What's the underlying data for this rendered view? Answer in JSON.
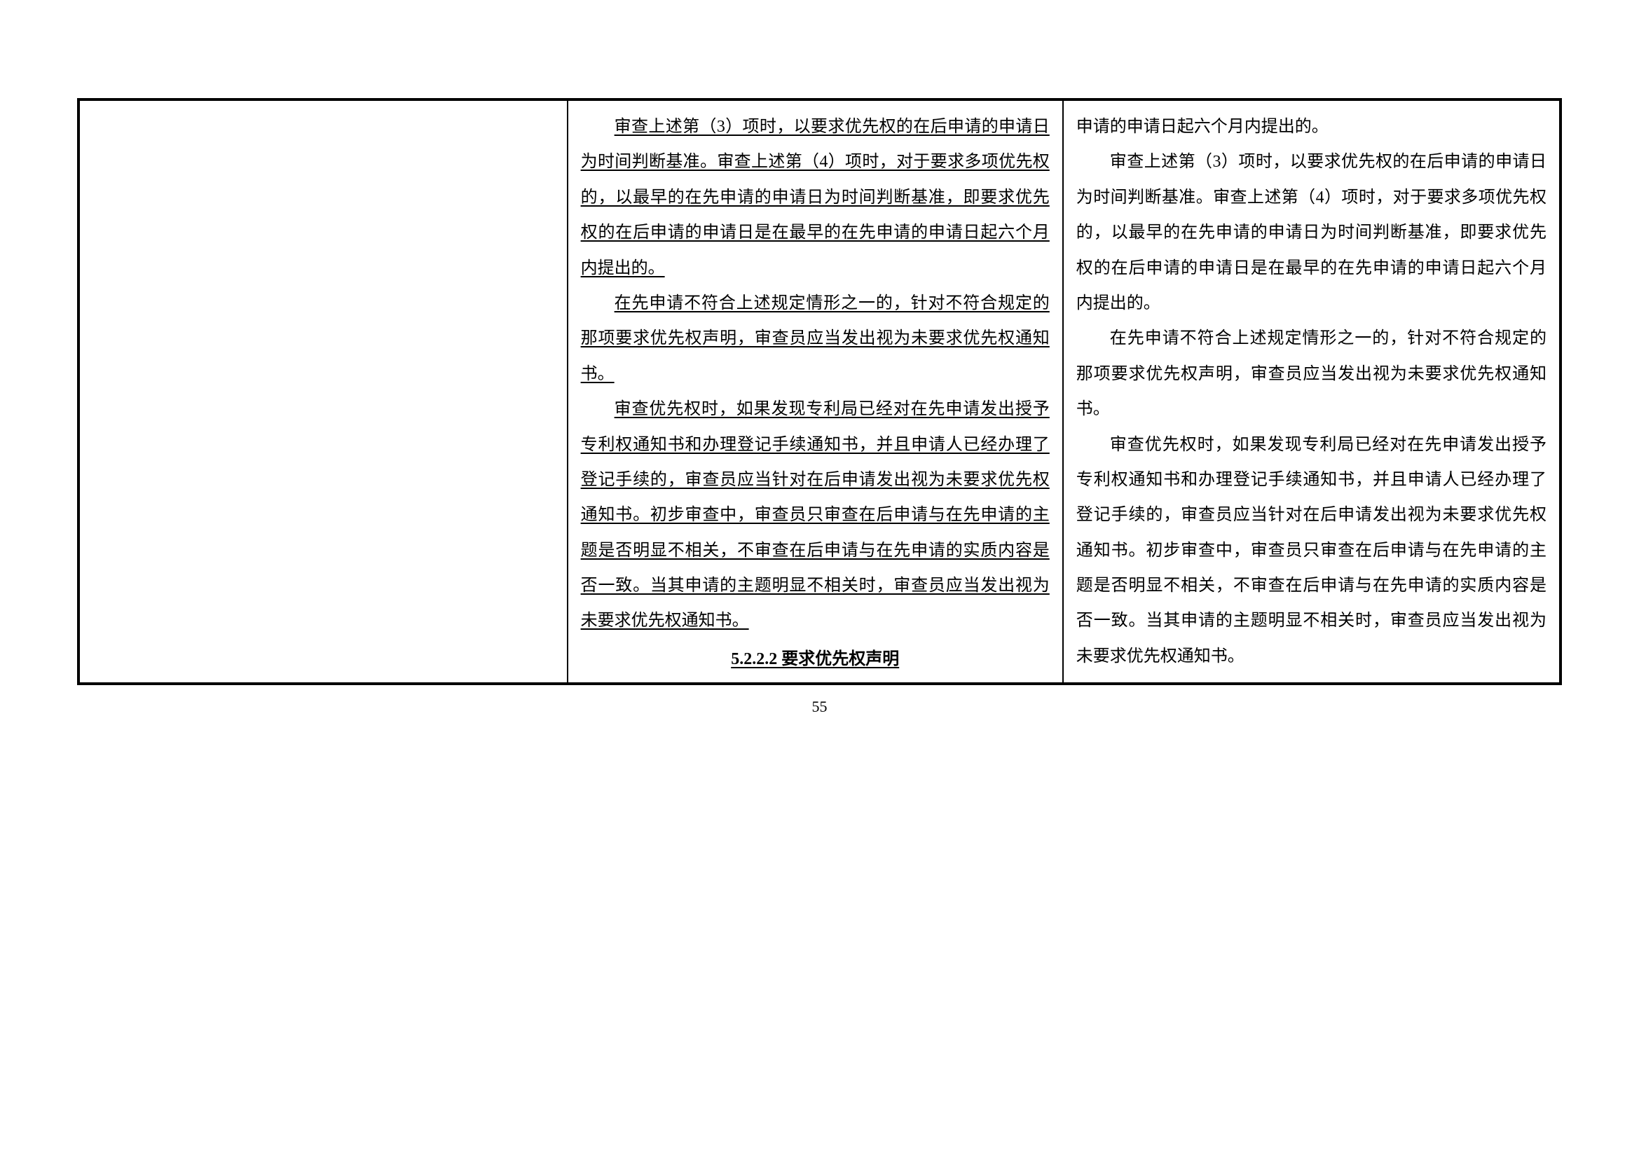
{
  "pageNumber": "55",
  "middleColumn": {
    "p1": "审查上述第（3）项时，以要求优先权的在后申请的申请日为时间判断基准。审查上述第（4）项时，对于要求多项优先权的，以最早的在先申请的申请日为时间判断基准，即要求优先权的在后申请的申请日是在最早的在先申请的申请日起六个月内提出的。",
    "p2": "在先申请不符合上述规定情形之一的，针对不符合规定的那项要求优先权声明，审查员应当发出视为未要求优先权通知书。",
    "p3": "审查优先权时，如果发现专利局已经对在先申请发出授予专利权通知书和办理登记手续通知书，并且申请人已经办理了登记手续的，审查员应当针对在后申请发出视为未要求优先权通知书。初步审查中，审查员只审查在后申请与在先申请的主题是否明显不相关，不审查在后申请与在先申请的实质内容是否一致。当其申请的主题明显不相关时，审查员应当发出视为未要求优先权通知书。",
    "heading": "5.2.2.2 要求优先权声明"
  },
  "rightColumn": {
    "p1": "申请的申请日起六个月内提出的。",
    "p2": "审查上述第（3）项时，以要求优先权的在后申请的申请日为时间判断基准。审查上述第（4）项时，对于要求多项优先权的，以最早的在先申请的申请日为时间判断基准，即要求优先权的在后申请的申请日是在最早的在先申请的申请日起六个月内提出的。",
    "p3": "在先申请不符合上述规定情形之一的，针对不符合规定的那项要求优先权声明，审查员应当发出视为未要求优先权通知书。",
    "p4": "审查优先权时，如果发现专利局已经对在先申请发出授予专利权通知书和办理登记手续通知书，并且申请人已经办理了登记手续的，审查员应当针对在后申请发出视为未要求优先权通知书。初步审查中，审查员只审查在后申请与在先申请的主题是否明显不相关，不审查在后申请与在先申请的实质内容是否一致。当其申请的主题明显不相关时，审查员应当发出视为未要求优先权通知书。"
  },
  "styling": {
    "fontSize": 24,
    "lineHeight": 2.1,
    "textColor": "#000000",
    "backgroundColor": "#ffffff",
    "borderColor": "#000000",
    "outerBorderWidth": 4,
    "innerBorderWidth": 2,
    "fontFamily": "SimSun"
  }
}
